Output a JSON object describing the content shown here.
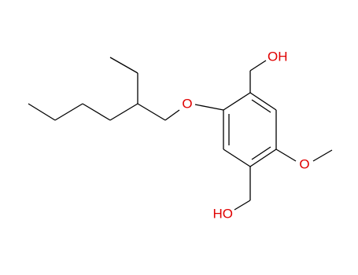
{
  "nodes": [
    {
      "label": "OH"
    },
    {
      "label": "O"
    },
    {
      "label": "O"
    },
    {
      "label": "HO"
    }
  ]
}
